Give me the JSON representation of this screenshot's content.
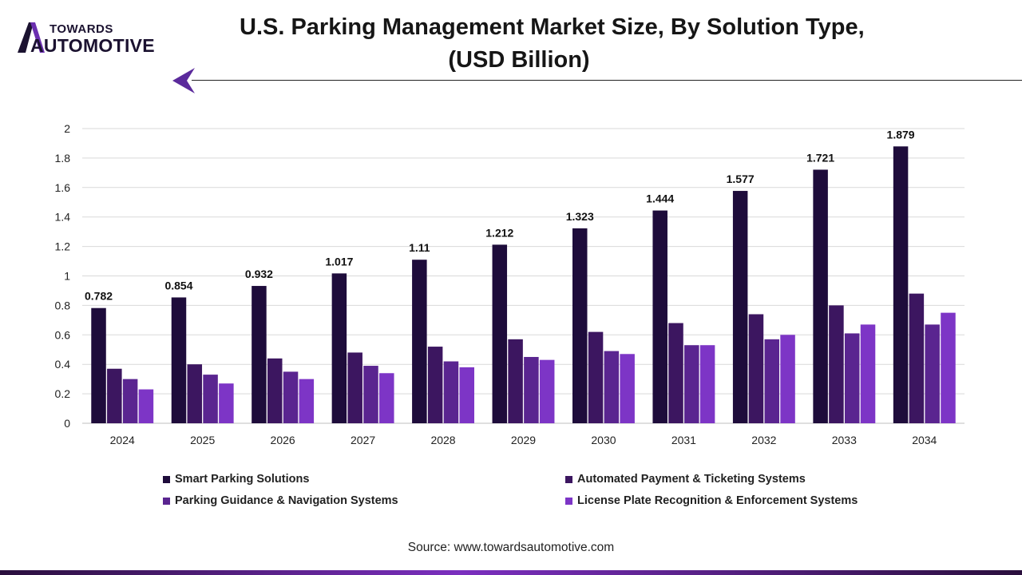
{
  "logo": {
    "top": "TOWARDS",
    "bottom": "AUTOMOTIVE"
  },
  "colors": {
    "smart": "#1e0c3b",
    "payment": "#3c1660",
    "guidance": "#5a2590",
    "license": "#7d35c6",
    "accent": "#5b2a9c"
  },
  "chart_data": {
    "type": "bar",
    "title": "U.S. Parking Management Market Size, By Solution Type,",
    "subtitle": "(USD Billion)",
    "xlabel": "",
    "ylabel": "",
    "ylim": [
      0,
      2
    ],
    "yticks": [
      "0",
      "0.2",
      "0.4",
      "0.6",
      "0.8",
      "1",
      "1.2",
      "1.4",
      "1.6",
      "1.8",
      "2"
    ],
    "grid": true,
    "categories": [
      "2024",
      "2025",
      "2026",
      "2027",
      "2028",
      "2029",
      "2030",
      "2031",
      "2032",
      "2033",
      "2034"
    ],
    "series": [
      {
        "name": "Smart Parking Solutions",
        "color_key": "smart",
        "labeled": true,
        "labels": [
          "0.782",
          "0.854",
          "0.932",
          "1.017",
          "1.11",
          "1.212",
          "1.323",
          "1.444",
          "1.577",
          "1.721",
          "1.879"
        ],
        "values": [
          0.782,
          0.854,
          0.932,
          1.017,
          1.11,
          1.212,
          1.323,
          1.444,
          1.577,
          1.721,
          1.879
        ]
      },
      {
        "name": "Automated Payment & Ticketing Systems",
        "color_key": "payment",
        "labeled": false,
        "values": [
          0.37,
          0.4,
          0.44,
          0.48,
          0.52,
          0.57,
          0.62,
          0.68,
          0.74,
          0.8,
          0.88
        ]
      },
      {
        "name": "Parking Guidance & Navigation Systems",
        "color_key": "guidance",
        "labeled": false,
        "values": [
          0.3,
          0.33,
          0.35,
          0.39,
          0.42,
          0.45,
          0.49,
          0.53,
          0.57,
          0.61,
          0.67
        ]
      },
      {
        "name": "License Plate Recognition & Enforcement Systems",
        "color_key": "license",
        "labeled": false,
        "values": [
          0.23,
          0.27,
          0.3,
          0.34,
          0.38,
          0.43,
          0.47,
          0.53,
          0.6,
          0.67,
          0.75
        ]
      }
    ],
    "legend_position": "bottom"
  },
  "source": "Source: www.towardsautomotive.com"
}
